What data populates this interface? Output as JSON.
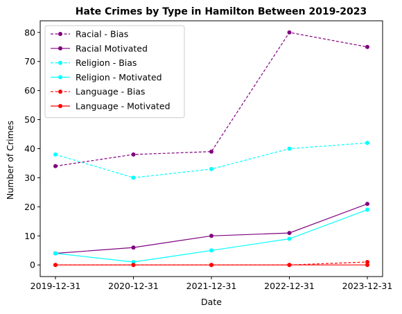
{
  "chart_data": {
    "type": "line",
    "title": "Hate Crimes by Type in Hamilton Between 2019-2023",
    "xlabel": "Date",
    "ylabel": "Number of Crimes",
    "categories": [
      "2019-12-31",
      "2020-12-31",
      "2021-12-31",
      "2022-12-31",
      "2023-12-31"
    ],
    "ylim": [
      -4,
      84
    ],
    "yticks": [
      0,
      10,
      20,
      30,
      40,
      50,
      60,
      70,
      80
    ],
    "grid": false,
    "legend_position": "top-left",
    "series": [
      {
        "name": "Racial - Bias",
        "values": [
          34,
          38,
          39,
          80,
          75
        ],
        "color": "#800080",
        "dashed": true
      },
      {
        "name": "Racial Motivated",
        "values": [
          4,
          6,
          10,
          11,
          21
        ],
        "color": "#800080",
        "dashed": false
      },
      {
        "name": "Religion - Bias",
        "values": [
          38,
          30,
          33,
          40,
          42
        ],
        "color": "#00ffff",
        "dashed": true
      },
      {
        "name": "Religion - Motivated",
        "values": [
          4,
          1,
          5,
          9,
          19
        ],
        "color": "#00ffff",
        "dashed": false
      },
      {
        "name": "Language - Bias",
        "values": [
          0,
          0,
          0,
          0,
          1
        ],
        "color": "#ff0000",
        "dashed": true
      },
      {
        "name": "Language - Motivated",
        "values": [
          0,
          0,
          0,
          0,
          0
        ],
        "color": "#ff0000",
        "dashed": false
      }
    ]
  }
}
